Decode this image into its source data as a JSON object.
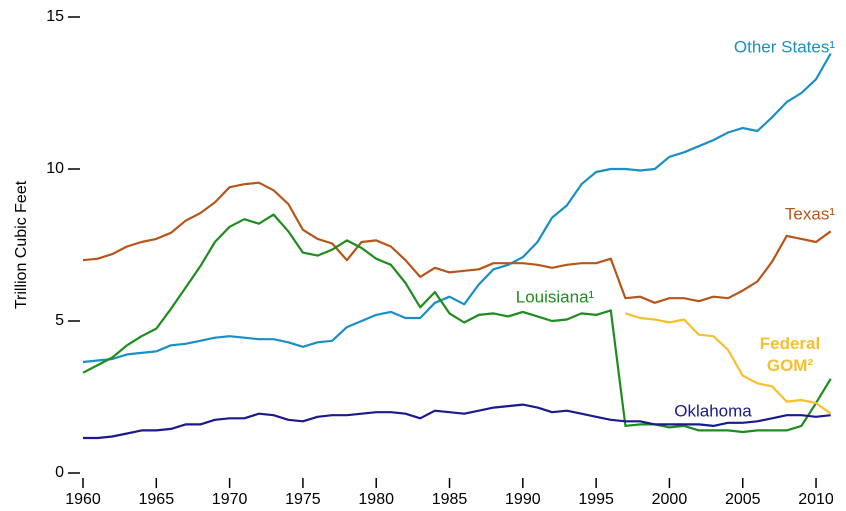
{
  "chart_data": {
    "type": "line",
    "y_label": "Trillion Cubic Feet",
    "x": [
      1960,
      1961,
      1962,
      1963,
      1964,
      1965,
      1966,
      1967,
      1968,
      1969,
      1970,
      1971,
      1972,
      1973,
      1974,
      1975,
      1976,
      1977,
      1978,
      1979,
      1980,
      1981,
      1982,
      1983,
      1984,
      1985,
      1986,
      1987,
      1988,
      1989,
      1990,
      1991,
      1992,
      1993,
      1994,
      1995,
      1996,
      1997,
      1998,
      1999,
      2000,
      2001,
      2002,
      2003,
      2004,
      2005,
      2006,
      2007,
      2008,
      2009,
      2010,
      2011
    ],
    "xlim": [
      1960,
      2011
    ],
    "xticks": [
      1960,
      1965,
      1970,
      1975,
      1980,
      1985,
      1990,
      1995,
      2000,
      2005,
      2010
    ],
    "ylim": [
      0,
      15
    ],
    "yticks": [
      0,
      5,
      10,
      15
    ],
    "series": [
      {
        "name": "Other States¹",
        "color": "#1a8fc4",
        "values": [
          3.65,
          3.7,
          3.75,
          3.9,
          3.95,
          4.0,
          4.2,
          4.25,
          4.35,
          4.45,
          4.5,
          4.45,
          4.4,
          4.4,
          4.3,
          4.15,
          4.3,
          4.35,
          4.8,
          5.0,
          5.2,
          5.3,
          5.1,
          5.1,
          5.6,
          5.8,
          5.55,
          6.2,
          6.7,
          6.85,
          7.1,
          7.6,
          8.4,
          8.8,
          9.5,
          9.9,
          10.0,
          10.0,
          9.95,
          10.0,
          10.4,
          10.55,
          10.75,
          10.95,
          11.2,
          11.35,
          11.25,
          11.7,
          12.2,
          12.5,
          12.95,
          13.8
        ]
      },
      {
        "name": "Texas¹",
        "color": "#b5561a",
        "values": [
          7.0,
          7.05,
          7.2,
          7.45,
          7.6,
          7.7,
          7.9,
          8.3,
          8.55,
          8.9,
          9.4,
          9.5,
          9.55,
          9.3,
          8.85,
          8.0,
          7.7,
          7.55,
          7.0,
          7.6,
          7.65,
          7.45,
          7.0,
          6.45,
          6.75,
          6.6,
          6.65,
          6.7,
          6.9,
          6.9,
          6.9,
          6.85,
          6.75,
          6.85,
          6.9,
          6.9,
          7.05,
          5.75,
          5.8,
          5.6,
          5.75,
          5.75,
          5.65,
          5.8,
          5.75,
          6.0,
          6.3,
          6.95,
          7.8,
          7.7,
          7.6,
          7.95
        ]
      },
      {
        "name": "Louisiana¹",
        "color": "#1e8c1e",
        "values": [
          3.3,
          3.55,
          3.8,
          4.2,
          4.5,
          4.75,
          5.4,
          6.1,
          6.8,
          7.6,
          8.1,
          8.35,
          8.2,
          8.5,
          7.95,
          7.25,
          7.15,
          7.35,
          7.65,
          7.4,
          7.05,
          6.85,
          6.25,
          5.45,
          5.95,
          5.25,
          4.95,
          5.2,
          5.25,
          5.15,
          5.3,
          5.15,
          5.0,
          5.05,
          5.25,
          5.2,
          5.35,
          1.55,
          1.6,
          1.6,
          1.5,
          1.55,
          1.4,
          1.4,
          1.4,
          1.35,
          1.4,
          1.4,
          1.4,
          1.55,
          2.3,
          3.1
        ]
      },
      {
        "name": "Oklahoma",
        "color": "#1a1a8c",
        "values": [
          1.15,
          1.15,
          1.2,
          1.3,
          1.4,
          1.4,
          1.45,
          1.6,
          1.6,
          1.75,
          1.8,
          1.8,
          1.95,
          1.9,
          1.75,
          1.7,
          1.85,
          1.9,
          1.9,
          1.95,
          2.0,
          2.0,
          1.95,
          1.8,
          2.05,
          2.0,
          1.95,
          2.05,
          2.15,
          2.2,
          2.25,
          2.15,
          2.0,
          2.05,
          1.95,
          1.85,
          1.75,
          1.7,
          1.7,
          1.6,
          1.6,
          1.6,
          1.6,
          1.55,
          1.65,
          1.65,
          1.7,
          1.8,
          1.9,
          1.9,
          1.85,
          1.9
        ]
      },
      {
        "name": "Federal GOM²",
        "color": "#f5c030",
        "values": [
          null,
          null,
          null,
          null,
          null,
          null,
          null,
          null,
          null,
          null,
          null,
          null,
          null,
          null,
          null,
          null,
          null,
          null,
          null,
          null,
          null,
          null,
          null,
          null,
          null,
          null,
          null,
          null,
          null,
          null,
          null,
          null,
          null,
          null,
          null,
          null,
          null,
          5.25,
          5.1,
          5.05,
          4.95,
          5.05,
          4.55,
          4.5,
          4.05,
          3.2,
          2.95,
          2.85,
          2.35,
          2.4,
          2.3,
          1.95
        ]
      }
    ]
  }
}
